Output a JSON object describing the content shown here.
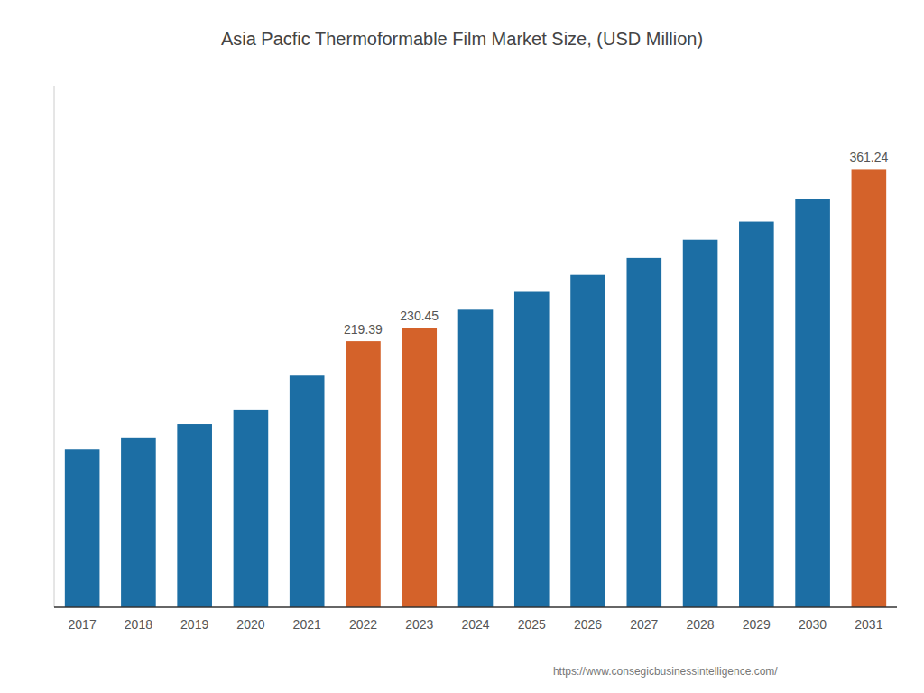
{
  "chart_data": {
    "type": "bar",
    "title": "Asia Pacfic Thermoformable Film Market Size, (USD Million)",
    "categories": [
      "2017",
      "2018",
      "2019",
      "2020",
      "2021",
      "2022",
      "2023",
      "2024",
      "2025",
      "2026",
      "2027",
      "2028",
      "2029",
      "2030",
      "2031"
    ],
    "values": [
      130.0,
      140.0,
      151.0,
      163.0,
      191.0,
      219.39,
      230.45,
      246.0,
      260.0,
      274.0,
      288.0,
      303.0,
      318.0,
      337.0,
      361.24
    ],
    "value_labels": [
      null,
      null,
      null,
      null,
      null,
      "219.39",
      "230.45",
      null,
      null,
      null,
      null,
      null,
      null,
      null,
      "361.24"
    ],
    "colors": [
      "#1c6ea4",
      "#1c6ea4",
      "#1c6ea4",
      "#1c6ea4",
      "#1c6ea4",
      "#d4622a",
      "#d4622a",
      "#1c6ea4",
      "#1c6ea4",
      "#1c6ea4",
      "#1c6ea4",
      "#1c6ea4",
      "#1c6ea4",
      "#1c6ea4",
      "#d4622a"
    ],
    "ylim": [
      0,
      430
    ],
    "tick_labels": "x",
    "grid": false,
    "annotations": [
      "https://www.consegicbusinessintelligence.com/"
    ]
  }
}
